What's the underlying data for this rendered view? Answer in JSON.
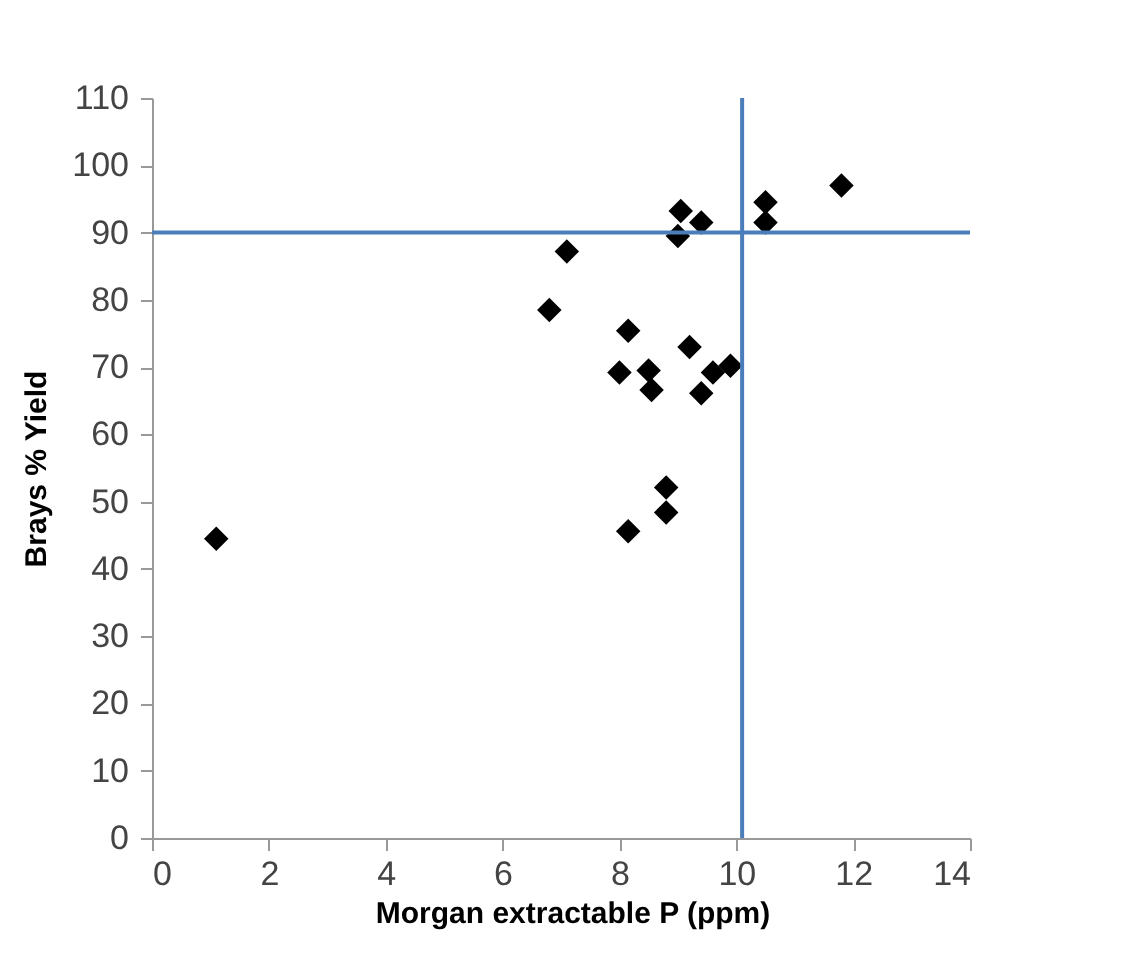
{
  "chart_data": {
    "type": "scatter",
    "xlabel": "Morgan extractable P (ppm)",
    "ylabel": "Brays % Yield",
    "x": [
      1.1,
      6.8,
      7.1,
      8.0,
      8.15,
      8.15,
      8.5,
      8.55,
      8.8,
      8.8,
      9.0,
      9.05,
      9.2,
      9.4,
      9.4,
      9.6,
      9.9,
      10.5,
      10.5,
      11.8
    ],
    "series": [
      {
        "color": "#000000",
        "values": [
          44.5,
          78.5,
          87.2,
          69.2,
          75.4,
          45.6,
          69.5,
          66.6,
          52.1,
          48.4,
          89.5,
          93.2,
          73.0,
          91.5,
          66.1,
          69.2,
          70.2,
          94.5,
          91.5,
          97
        ]
      }
    ],
    "xlim": [
      0,
      14
    ],
    "xticks": [
      0,
      2,
      4,
      6,
      8,
      10,
      12,
      14
    ],
    "ylim": [
      0,
      110
    ],
    "yticks": [
      0,
      10,
      20,
      30,
      40,
      50,
      60,
      70,
      80,
      90,
      100,
      110
    ],
    "ref_lines": [
      {
        "axis": "y",
        "value": 90,
        "color": "#4a7ebb"
      },
      {
        "axis": "x",
        "value": 10.1,
        "color": "#4a7ebb"
      }
    ],
    "marker": "diamond",
    "grid": false
  }
}
